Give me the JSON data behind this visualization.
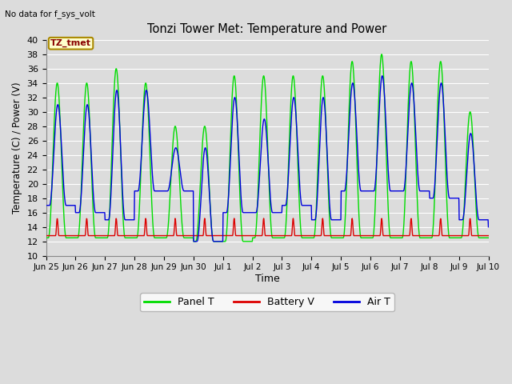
{
  "title": "Tonzi Tower Met: Temperature and Power",
  "top_left_text": "No data for f_sys_volt",
  "annotation_text": "TZ_tmet",
  "xlabel": "Time",
  "ylabel": "Temperature (C) / Power (V)",
  "ylim": [
    10,
    40
  ],
  "yticks": [
    10,
    12,
    14,
    16,
    18,
    20,
    22,
    24,
    26,
    28,
    30,
    32,
    34,
    36,
    38,
    40
  ],
  "plot_bg_color": "#dcdcdc",
  "grid_color": "#ffffff",
  "panel_T_color": "#00dd00",
  "battery_V_color": "#dd0000",
  "air_T_color": "#0000dd",
  "line_width": 1.0,
  "legend_labels": [
    "Panel T",
    "Battery V",
    "Air T"
  ],
  "xtick_labels": [
    "Jun 25",
    "Jun 26",
    "Jun 27",
    "Jun 28",
    "Jun 29",
    "Jun 30",
    "Jul 1",
    "Jul 2",
    "Jul 3",
    "Jul 4",
    "Jul 5",
    "Jul 6",
    "Jul 7",
    "Jul 8",
    "Jul 9",
    "Jul 10"
  ],
  "num_days": 15,
  "figsize": [
    6.4,
    4.8
  ],
  "dpi": 100
}
